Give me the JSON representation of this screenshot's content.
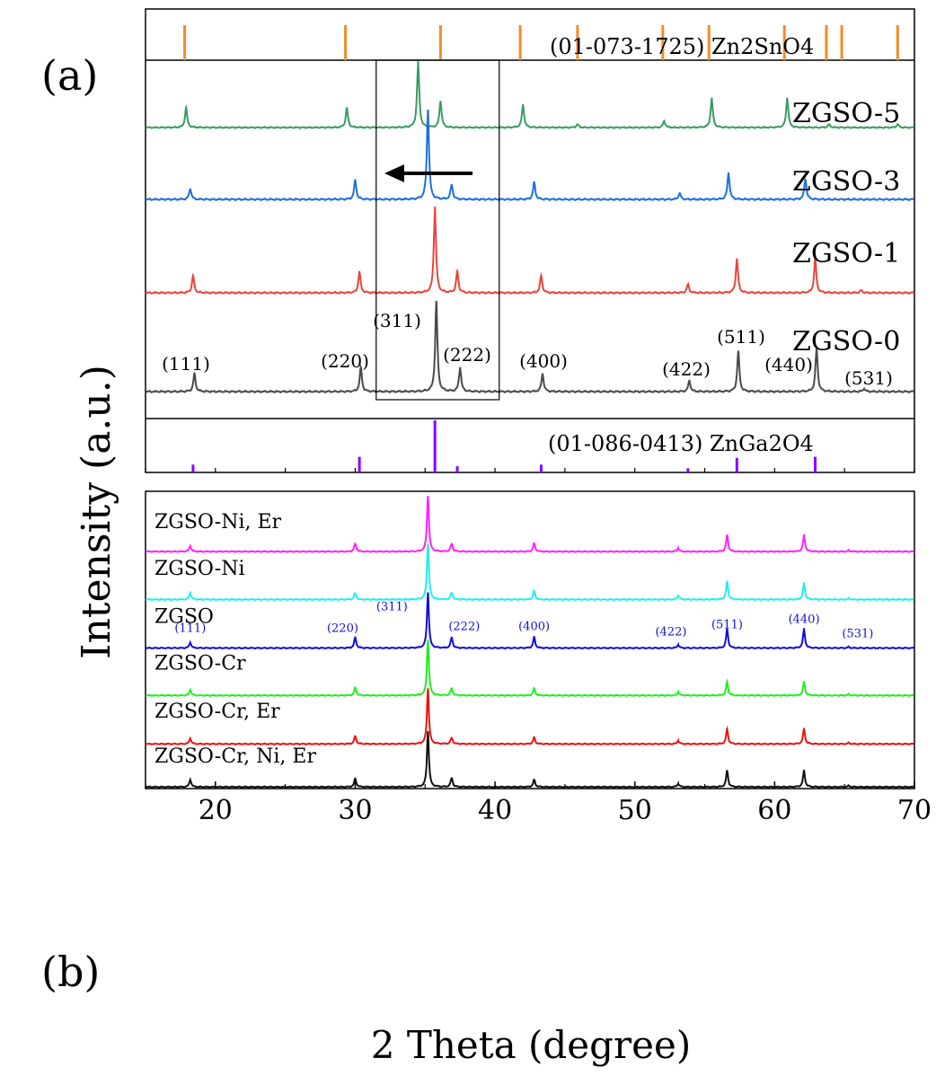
{
  "figure": {
    "panel_a_label": "(a)",
    "panel_b_label": "(b)",
    "ylabel": "Intensity (a.u.)",
    "xlabel": "2 Theta (degree)",
    "x_ticks": [
      "20",
      "30",
      "40",
      "50",
      "60",
      "70"
    ]
  },
  "chart_data": [
    {
      "type": "line",
      "panel": "a",
      "xlabel": "2 Theta (degree)",
      "ylabel": "Intensity (a.u.)",
      "xlim": [
        15,
        70
      ],
      "reference_top": {
        "name": "(01-073-1725) Zn2SnO4",
        "color": "#f28c28",
        "peaks": [
          17.8,
          29.3,
          36.1,
          41.8,
          45.9,
          52.0,
          55.3,
          60.7,
          63.7,
          64.8,
          68.8
        ]
      },
      "reference_bottom": {
        "name": "(01-086-0413) ZnGa2O4",
        "color": "#8b00ff",
        "peaks": [
          {
            "x": 18.4,
            "h": 0.15
          },
          {
            "x": 30.3,
            "h": 0.3
          },
          {
            "x": 35.7,
            "h": 1.0
          },
          {
            "x": 37.3,
            "h": 0.12
          },
          {
            "x": 43.3,
            "h": 0.15
          },
          {
            "x": 53.8,
            "h": 0.08
          },
          {
            "x": 57.3,
            "h": 0.28
          },
          {
            "x": 62.9,
            "h": 0.3
          }
        ]
      },
      "series": [
        {
          "name": "ZGSO-5",
          "color": "#3a9b63",
          "peaks": [
            [
              17.9,
              0.3
            ],
            [
              29.4,
              0.3
            ],
            [
              34.5,
              1.0
            ],
            [
              36.1,
              0.4
            ],
            [
              42.0,
              0.35
            ],
            [
              45.9,
              0.05
            ],
            [
              52.1,
              0.1
            ],
            [
              55.5,
              0.45
            ],
            [
              60.9,
              0.45
            ],
            [
              63.9,
              0.05
            ],
            [
              68.8,
              0.05
            ]
          ]
        },
        {
          "name": "ZGSO-3",
          "color": "#1f6fd8",
          "peaks": [
            [
              18.2,
              0.12
            ],
            [
              30.0,
              0.22
            ],
            [
              35.2,
              1.0
            ],
            [
              36.9,
              0.17
            ],
            [
              42.8,
              0.19
            ],
            [
              53.2,
              0.07
            ],
            [
              56.7,
              0.3
            ],
            [
              62.2,
              0.23
            ]
          ]
        },
        {
          "name": "ZGSO-1",
          "color": "#e8453c",
          "peaks": [
            [
              18.4,
              0.2
            ],
            [
              30.3,
              0.25
            ],
            [
              35.7,
              1.0
            ],
            [
              37.3,
              0.25
            ],
            [
              43.3,
              0.2
            ],
            [
              53.8,
              0.1
            ],
            [
              57.3,
              0.4
            ],
            [
              62.9,
              0.4
            ],
            [
              66.2,
              0.03
            ]
          ]
        },
        {
          "name": "ZGSO-0",
          "color": "#4a4a4a",
          "peaks": [
            [
              18.5,
              0.2
            ],
            [
              30.4,
              0.27
            ],
            [
              35.8,
              1.0
            ],
            [
              37.5,
              0.27
            ],
            [
              43.4,
              0.2
            ],
            [
              53.9,
              0.12
            ],
            [
              57.4,
              0.45
            ],
            [
              63.0,
              0.49
            ],
            [
              66.4,
              0.03
            ]
          ]
        }
      ],
      "annotations": [
        {
          "text": "(111)",
          "x": 18.5
        },
        {
          "text": "(220)",
          "x": 30.4
        },
        {
          "text": "(311)",
          "x": 35.8
        },
        {
          "text": "(222)",
          "x": 37.5
        },
        {
          "text": "(400)",
          "x": 43.4
        },
        {
          "text": "(422)",
          "x": 53.9
        },
        {
          "text": "(511)",
          "x": 57.4
        },
        {
          "text": "(440)",
          "x": 63.0
        },
        {
          "text": "(531)",
          "x": 66.4
        }
      ],
      "highlight_box": {
        "x_from": 31.5,
        "x_to": 40.3
      }
    },
    {
      "type": "line",
      "panel": "b",
      "xlabel": "2 Theta (degree)",
      "ylabel": "Intensity (a.u.)",
      "xlim": [
        15,
        70
      ],
      "series": [
        {
          "name": "ZGSO-Ni, Er",
          "color": "#ff22ff",
          "peaks": [
            [
              18.2,
              0.1
            ],
            [
              30.0,
              0.15
            ],
            [
              35.2,
              1.0
            ],
            [
              36.9,
              0.15
            ],
            [
              42.8,
              0.15
            ],
            [
              53.1,
              0.06
            ],
            [
              56.6,
              0.3
            ],
            [
              62.1,
              0.3
            ],
            [
              65.3,
              0.02
            ]
          ]
        },
        {
          "name": "ZGSO-Ni",
          "color": "#22eeee",
          "peaks": [
            [
              18.2,
              0.12
            ],
            [
              30.0,
              0.12
            ],
            [
              35.2,
              1.0
            ],
            [
              36.9,
              0.13
            ],
            [
              42.8,
              0.16
            ],
            [
              53.1,
              0.08
            ],
            [
              56.6,
              0.33
            ],
            [
              62.1,
              0.3
            ],
            [
              65.3,
              0.02
            ]
          ]
        },
        {
          "name": "ZGSO",
          "color": "#1010d8",
          "peaks": [
            [
              18.2,
              0.1
            ],
            [
              30.0,
              0.2
            ],
            [
              35.2,
              1.0
            ],
            [
              36.9,
              0.2
            ],
            [
              42.8,
              0.2
            ],
            [
              53.1,
              0.06
            ],
            [
              56.6,
              0.35
            ],
            [
              62.1,
              0.35
            ],
            [
              65.3,
              0.02
            ]
          ]
        },
        {
          "name": "ZGSO-Cr",
          "color": "#22ee22",
          "peaks": [
            [
              18.2,
              0.1
            ],
            [
              30.0,
              0.15
            ],
            [
              35.2,
              1.0
            ],
            [
              36.9,
              0.14
            ],
            [
              42.8,
              0.13
            ],
            [
              53.1,
              0.06
            ],
            [
              56.6,
              0.25
            ],
            [
              62.1,
              0.25
            ],
            [
              65.3,
              0.02
            ]
          ]
        },
        {
          "name": "ZGSO-Cr, Er",
          "color": "#ee1111",
          "peaks": [
            [
              18.2,
              0.1
            ],
            [
              30.0,
              0.15
            ],
            [
              35.2,
              1.0
            ],
            [
              36.9,
              0.12
            ],
            [
              42.8,
              0.12
            ],
            [
              53.1,
              0.06
            ],
            [
              56.6,
              0.27
            ],
            [
              62.1,
              0.28
            ],
            [
              65.3,
              0.02
            ]
          ]
        },
        {
          "name": "ZGSO-Cr, Ni, Er",
          "color": "#111111",
          "peaks": [
            [
              18.2,
              0.13
            ],
            [
              30.0,
              0.16
            ],
            [
              35.2,
              1.0
            ],
            [
              36.9,
              0.17
            ],
            [
              42.8,
              0.13
            ],
            [
              53.1,
              0.06
            ],
            [
              56.6,
              0.3
            ],
            [
              62.1,
              0.3
            ],
            [
              65.3,
              0.02
            ]
          ]
        }
      ],
      "annotations": [
        {
          "text": "(111)",
          "x": 18.2
        },
        {
          "text": "(220)",
          "x": 30.0
        },
        {
          "text": "(311)",
          "x": 35.2
        },
        {
          "text": "(222)",
          "x": 36.9
        },
        {
          "text": "(400)",
          "x": 42.8
        },
        {
          "text": "(422)",
          "x": 53.1
        },
        {
          "text": "(511)",
          "x": 56.6
        },
        {
          "text": "(440)",
          "x": 62.1
        },
        {
          "text": "(531)",
          "x": 65.3
        }
      ]
    }
  ]
}
